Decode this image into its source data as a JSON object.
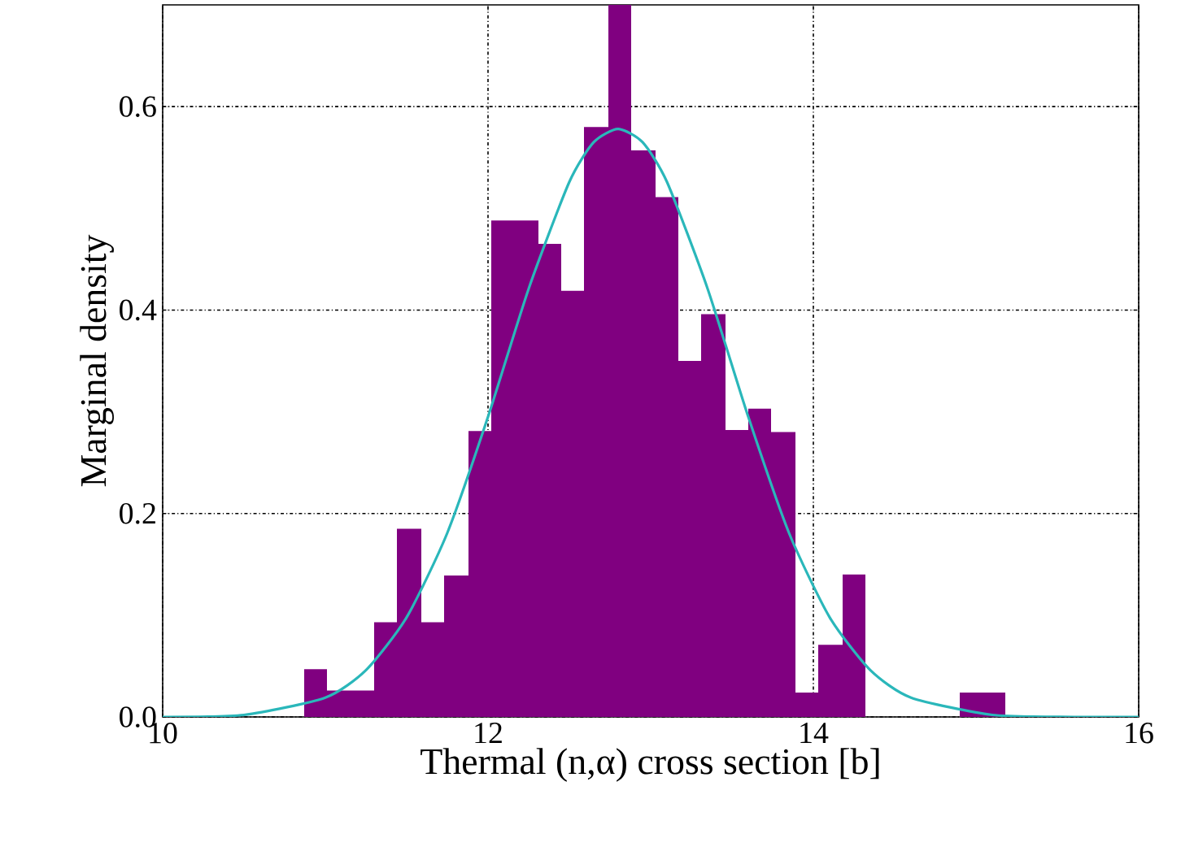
{
  "chart_data": {
    "type": "histogram",
    "xlabel": "Thermal (n,α) cross section [b]",
    "ylabel": "Marginal density",
    "xlim": [
      10,
      16
    ],
    "ylim": [
      0,
      0.7
    ],
    "xticks": [
      10,
      12,
      14,
      16
    ],
    "yticks": [
      {
        "value": 0,
        "label": "0.0"
      },
      {
        "value": 0.2,
        "label": "0.2"
      },
      {
        "value": 0.4,
        "label": "0.4"
      },
      {
        "value": 0.6,
        "label": "0.6"
      }
    ],
    "grid": true,
    "series": [
      {
        "color": "#800080",
        "bins": [
          10.87,
          11.01,
          11.3,
          11.44,
          11.59,
          11.73,
          11.88,
          12.02,
          12.31,
          12.45,
          12.59,
          12.74,
          12.88,
          13.03,
          13.17,
          13.31,
          13.46,
          13.6,
          13.74,
          13.89,
          14.03,
          14.18,
          14.32,
          14.9,
          15.18
        ],
        "values": [
          0.047,
          0.026,
          0.093,
          0.185,
          0.093,
          0.139,
          0.281,
          0.488,
          0.465,
          0.419,
          0.58,
          0.7,
          0.557,
          0.511,
          0.35,
          0.396,
          0.282,
          0.303,
          0.28,
          0.024,
          0.071,
          0.14,
          0,
          0.024
        ]
      },
      {
        "type": "line",
        "color": "#2ab7ba",
        "x": [
          10.0,
          10.5,
          11.0,
          11.25,
          11.5,
          11.75,
          12.0,
          12.25,
          12.5,
          12.65,
          12.8,
          12.95,
          13.1,
          13.35,
          13.6,
          13.85,
          14.1,
          14.35,
          14.6,
          15.1,
          15.6,
          16.0
        ],
        "values": [
          0,
          0.002,
          0.019,
          0.046,
          0.098,
          0.181,
          0.295,
          0.421,
          0.526,
          0.565,
          0.578,
          0.565,
          0.526,
          0.421,
          0.295,
          0.181,
          0.098,
          0.046,
          0.019,
          0.002,
          0,
          0
        ]
      }
    ]
  }
}
